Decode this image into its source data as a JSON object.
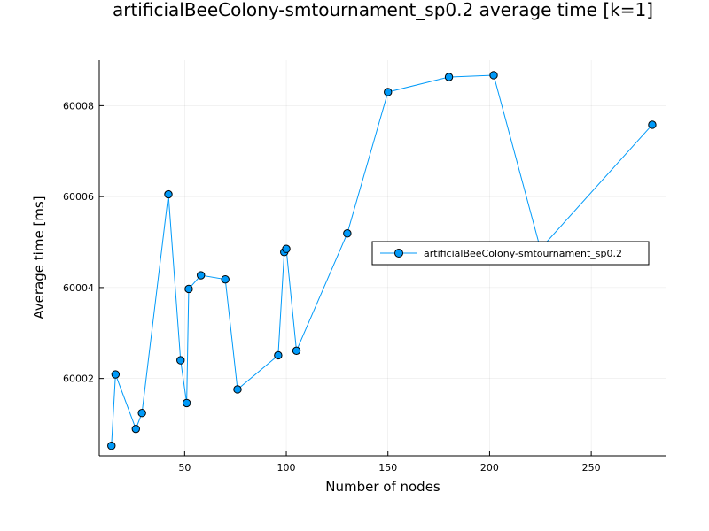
{
  "chart_data": {
    "type": "line",
    "title": "artificialBeeColony-smtournament_sp0.2 average time [k=1]",
    "xlabel": "Number of nodes",
    "ylabel": "Average time [ms]",
    "xlim": [
      8,
      287
    ],
    "ylim": [
      60000.3,
      60009.0
    ],
    "xticks": [
      50,
      100,
      150,
      200,
      250
    ],
    "yticks": [
      60002,
      60004,
      60006,
      60008
    ],
    "grid": true,
    "legend_position": "right",
    "series": [
      {
        "name": "artificialBeeColony-smtournament_sp0.2",
        "color": "#009AF9",
        "marker": "circle",
        "x": [
          14,
          16,
          26,
          29,
          42,
          48,
          51,
          52,
          58,
          70,
          76,
          96,
          99,
          100,
          105,
          130,
          150,
          180,
          202,
          225,
          280
        ],
        "y": [
          60000.52,
          60002.09,
          60000.89,
          60001.24,
          60006.05,
          60002.4,
          60001.46,
          60003.97,
          60004.27,
          60004.18,
          60001.76,
          60002.51,
          60004.78,
          60004.85,
          60002.61,
          60005.19,
          60008.3,
          60008.63,
          60008.67,
          60004.85,
          60007.58
        ]
      }
    ]
  }
}
